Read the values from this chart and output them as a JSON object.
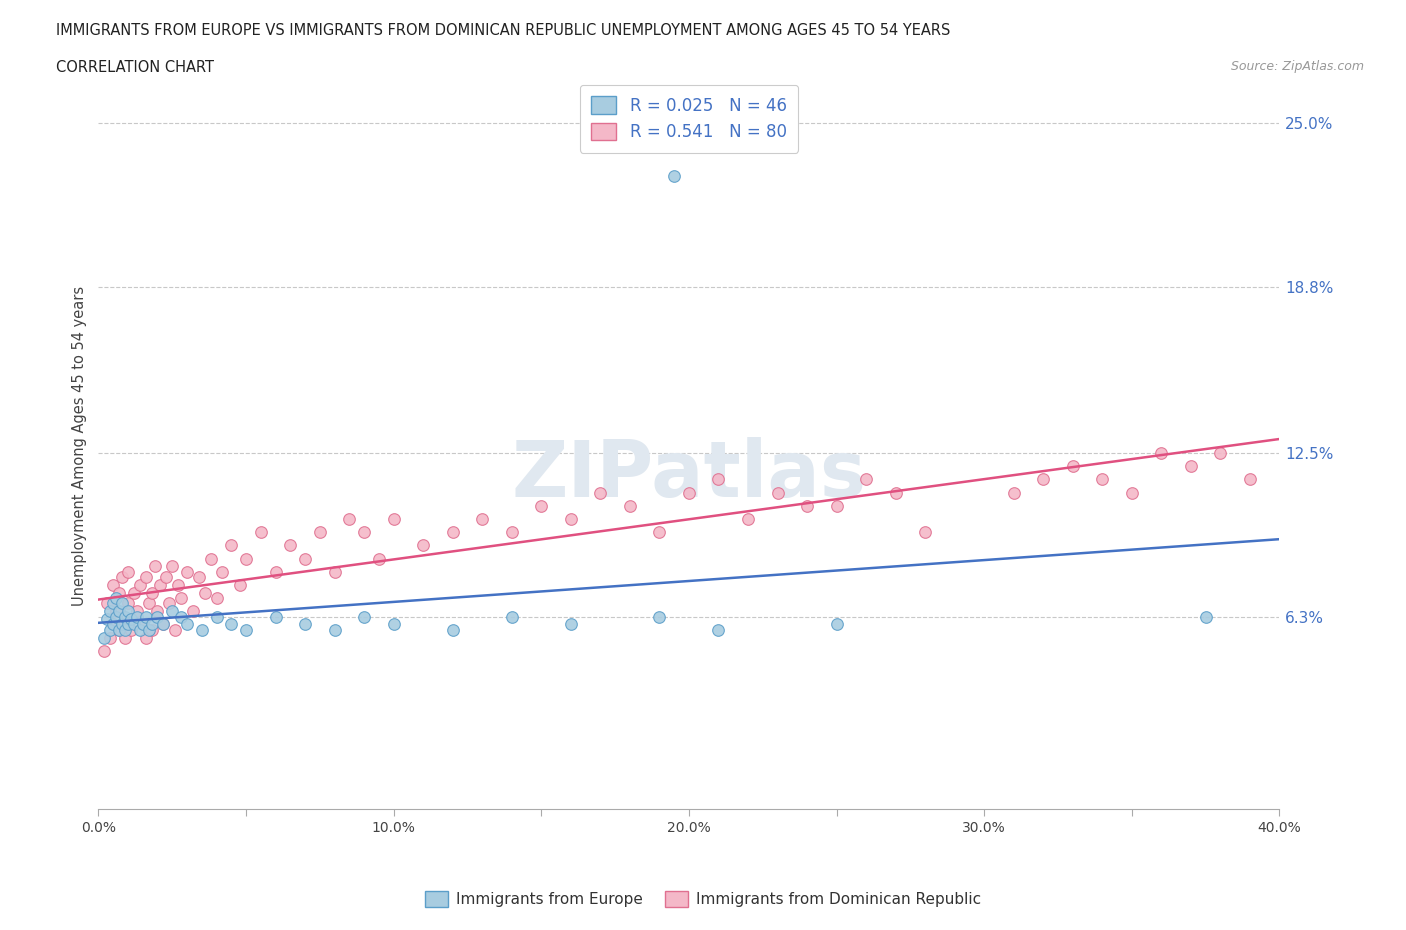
{
  "title_line1": "IMMIGRANTS FROM EUROPE VS IMMIGRANTS FROM DOMINICAN REPUBLIC UNEMPLOYMENT AMONG AGES 45 TO 54 YEARS",
  "title_line2": "CORRELATION CHART",
  "source_text": "Source: ZipAtlas.com",
  "ylabel": "Unemployment Among Ages 45 to 54 years",
  "xlim": [
    0.0,
    0.4
  ],
  "ylim": [
    -0.01,
    0.265
  ],
  "ytick_vals": [
    0.063,
    0.125,
    0.188,
    0.25
  ],
  "ytick_labels": [
    "6.3%",
    "12.5%",
    "18.8%",
    "25.0%"
  ],
  "xticks": [
    0.0,
    0.05,
    0.1,
    0.15,
    0.2,
    0.25,
    0.3,
    0.35,
    0.4
  ],
  "xtick_labels": [
    "0.0%",
    "",
    "10.0%",
    "",
    "20.0%",
    "",
    "30.0%",
    "",
    "40.0%"
  ],
  "legend_labels": [
    "Immigrants from Europe",
    "Immigrants from Dominican Republic"
  ],
  "R_europe": 0.025,
  "N_europe": 46,
  "R_dr": 0.541,
  "N_dr": 80,
  "blue_color": "#a8cce0",
  "pink_color": "#f4b8c8",
  "blue_edge": "#5b9ec9",
  "pink_edge": "#e07090",
  "trend_blue": "#4472c4",
  "trend_pink": "#e05080",
  "watermark": "ZIPatlas",
  "europe_x": [
    0.002,
    0.003,
    0.004,
    0.004,
    0.005,
    0.005,
    0.006,
    0.006,
    0.007,
    0.007,
    0.008,
    0.008,
    0.009,
    0.009,
    0.01,
    0.01,
    0.011,
    0.012,
    0.013,
    0.014,
    0.015,
    0.016,
    0.017,
    0.018,
    0.02,
    0.022,
    0.025,
    0.028,
    0.03,
    0.035,
    0.04,
    0.045,
    0.05,
    0.06,
    0.07,
    0.08,
    0.09,
    0.1,
    0.12,
    0.14,
    0.16,
    0.19,
    0.21,
    0.195,
    0.25,
    0.375
  ],
  "europe_y": [
    0.055,
    0.062,
    0.058,
    0.065,
    0.06,
    0.068,
    0.063,
    0.07,
    0.058,
    0.065,
    0.06,
    0.068,
    0.058,
    0.063,
    0.06,
    0.065,
    0.062,
    0.06,
    0.063,
    0.058,
    0.06,
    0.063,
    0.058,
    0.06,
    0.063,
    0.06,
    0.065,
    0.063,
    0.06,
    0.058,
    0.063,
    0.06,
    0.058,
    0.063,
    0.06,
    0.058,
    0.063,
    0.06,
    0.058,
    0.063,
    0.06,
    0.063,
    0.058,
    0.23,
    0.06,
    0.063
  ],
  "dr_x": [
    0.002,
    0.003,
    0.004,
    0.005,
    0.005,
    0.006,
    0.007,
    0.007,
    0.008,
    0.008,
    0.009,
    0.01,
    0.01,
    0.011,
    0.012,
    0.013,
    0.014,
    0.015,
    0.016,
    0.016,
    0.017,
    0.018,
    0.018,
    0.019,
    0.02,
    0.021,
    0.022,
    0.023,
    0.024,
    0.025,
    0.026,
    0.027,
    0.028,
    0.03,
    0.032,
    0.034,
    0.036,
    0.038,
    0.04,
    0.042,
    0.045,
    0.048,
    0.05,
    0.055,
    0.06,
    0.065,
    0.07,
    0.075,
    0.08,
    0.085,
    0.09,
    0.095,
    0.1,
    0.11,
    0.12,
    0.13,
    0.14,
    0.15,
    0.16,
    0.17,
    0.18,
    0.19,
    0.2,
    0.21,
    0.22,
    0.23,
    0.24,
    0.28,
    0.31,
    0.32,
    0.33,
    0.34,
    0.35,
    0.36,
    0.37,
    0.38,
    0.39,
    0.25,
    0.26,
    0.27
  ],
  "dr_y": [
    0.05,
    0.068,
    0.055,
    0.06,
    0.075,
    0.065,
    0.058,
    0.072,
    0.06,
    0.078,
    0.055,
    0.068,
    0.08,
    0.058,
    0.072,
    0.065,
    0.075,
    0.06,
    0.078,
    0.055,
    0.068,
    0.072,
    0.058,
    0.082,
    0.065,
    0.075,
    0.06,
    0.078,
    0.068,
    0.082,
    0.058,
    0.075,
    0.07,
    0.08,
    0.065,
    0.078,
    0.072,
    0.085,
    0.07,
    0.08,
    0.09,
    0.075,
    0.085,
    0.095,
    0.08,
    0.09,
    0.085,
    0.095,
    0.08,
    0.1,
    0.095,
    0.085,
    0.1,
    0.09,
    0.095,
    0.1,
    0.095,
    0.105,
    0.1,
    0.11,
    0.105,
    0.095,
    0.11,
    0.115,
    0.1,
    0.11,
    0.105,
    0.095,
    0.11,
    0.115,
    0.12,
    0.115,
    0.11,
    0.125,
    0.12,
    0.125,
    0.115,
    0.105,
    0.115,
    0.11
  ]
}
